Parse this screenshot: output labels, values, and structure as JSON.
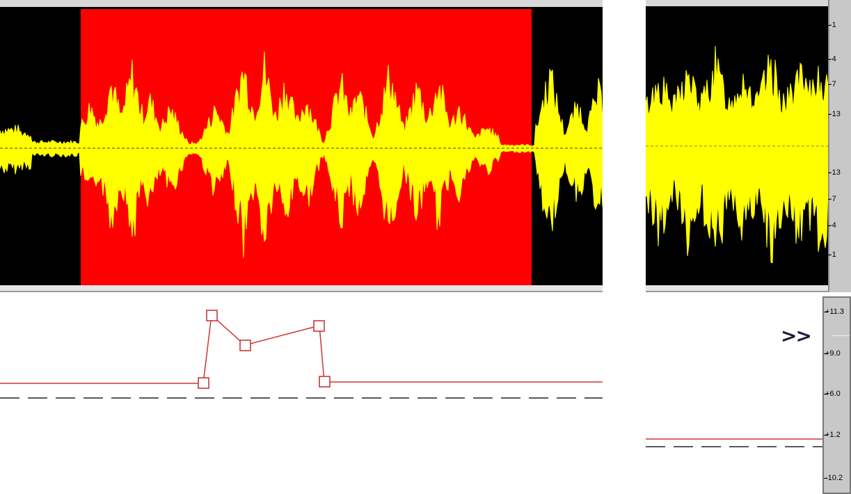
{
  "colors": {
    "waveform": "#ffff00",
    "selection": "#ff0000",
    "background": "#000000",
    "envelope": "#d23333",
    "baseline": "#222222"
  },
  "db_scale": {
    "labels": [
      "-1",
      "-4",
      "-7",
      "-13",
      "-13",
      "-7",
      "-4",
      "-1"
    ]
  },
  "gain_scale": {
    "labels": [
      "+11.3",
      "+9.0",
      "+6.0",
      "+1.2",
      "-10.2"
    ]
  },
  "overflow_indicator": ">>",
  "icons": {
    "overflow": "double-chevron-right-icon"
  }
}
